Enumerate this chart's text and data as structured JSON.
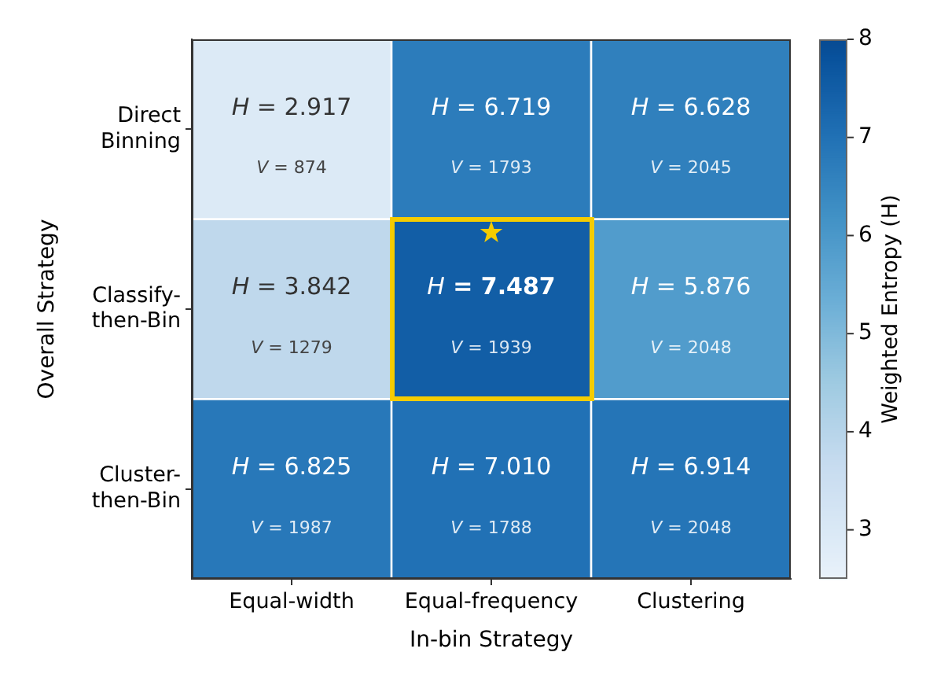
{
  "chart_data": {
    "type": "heatmap",
    "xlabel": "In-bin Strategy",
    "ylabel": "Overall Strategy",
    "clabel": "Weighted Entropy (H)",
    "categories": [
      "Equal-width",
      "Equal-frequency",
      "Clustering"
    ],
    "y_categories": [
      "Direct Binning",
      "Classify-then-Bin",
      "Cluster-then-Bin"
    ],
    "cells": [
      [
        2.917,
        6.719,
        6.628
      ],
      [
        3.842,
        7.487,
        5.876
      ],
      [
        6.825,
        7.01,
        6.914
      ]
    ],
    "cell_labels": [
      [
        "H = 2.917\nV = 874",
        "H = 6.719\nV = 1793",
        "H = 6.628\nV = 2045"
      ],
      [
        "H = 3.842\nV = 1279",
        "H = 7.487\nV = 1939",
        "H = 5.876\nV = 2048"
      ],
      [
        "H = 6.825\nV = 1987",
        "H = 7.010\nV = 1788",
        "H = 6.914\nV = 2048"
      ]
    ],
    "clim": [
      2.5,
      8
    ],
    "cticks": [
      3,
      4,
      5,
      6,
      7,
      8
    ]
  }
}
